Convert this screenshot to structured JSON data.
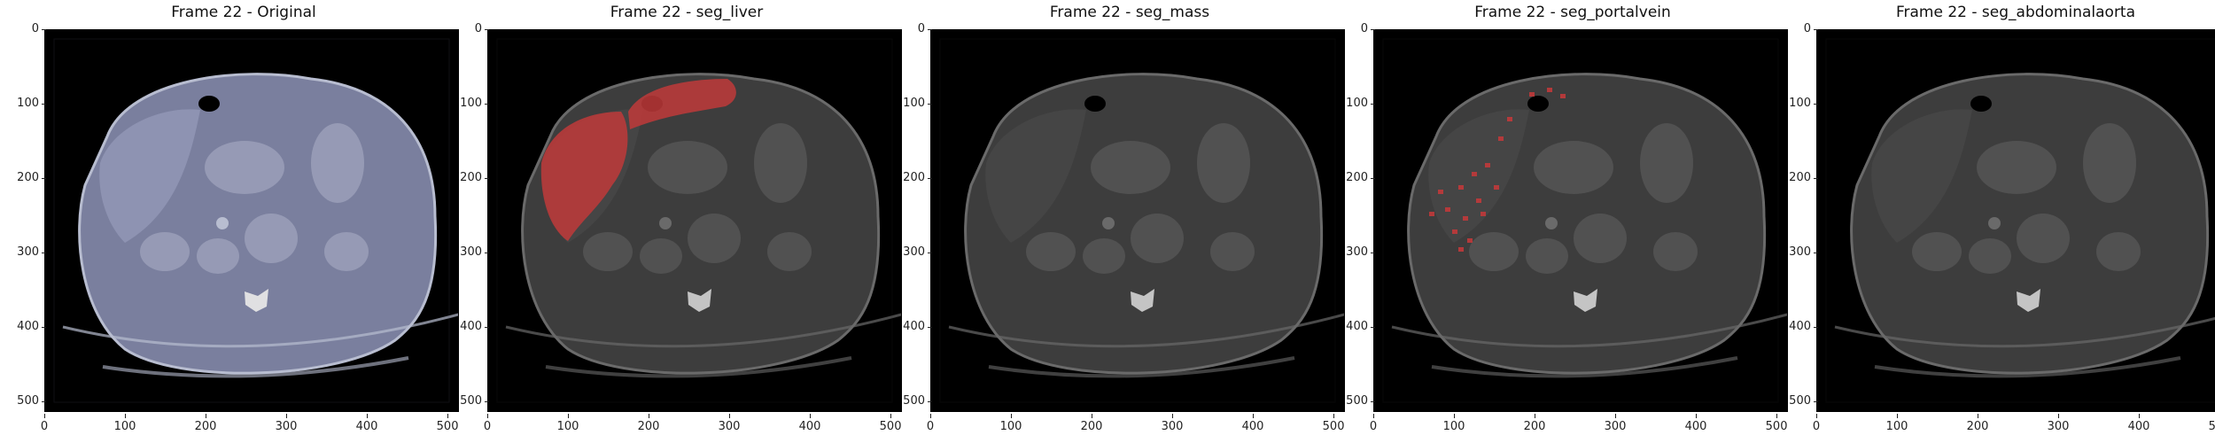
{
  "figure": {
    "panels": [
      {
        "title": "Frame 22 - Original",
        "mode": "original",
        "mask": "none"
      },
      {
        "title": "Frame 22 - seg_liver",
        "mode": "overlay",
        "mask": "liver"
      },
      {
        "title": "Frame 22 - seg_mass",
        "mode": "overlay",
        "mask": "none"
      },
      {
        "title": "Frame 22 - seg_portalvein",
        "mode": "overlay",
        "mask": "portalvein"
      },
      {
        "title": "Frame 22 - seg_abdominalaorta",
        "mode": "overlay",
        "mask": "none"
      }
    ],
    "yticks": [
      "0",
      "100",
      "200",
      "300",
      "400",
      "500"
    ],
    "xticks": [
      "0",
      "100",
      "200",
      "300",
      "400",
      "500"
    ],
    "axis_range": [
      0,
      512
    ],
    "colors": {
      "original_tissue": "#7a7f9e",
      "overlay_tissue": "#3d3d3d",
      "mask": "#c0393a",
      "background": "#000000"
    }
  }
}
